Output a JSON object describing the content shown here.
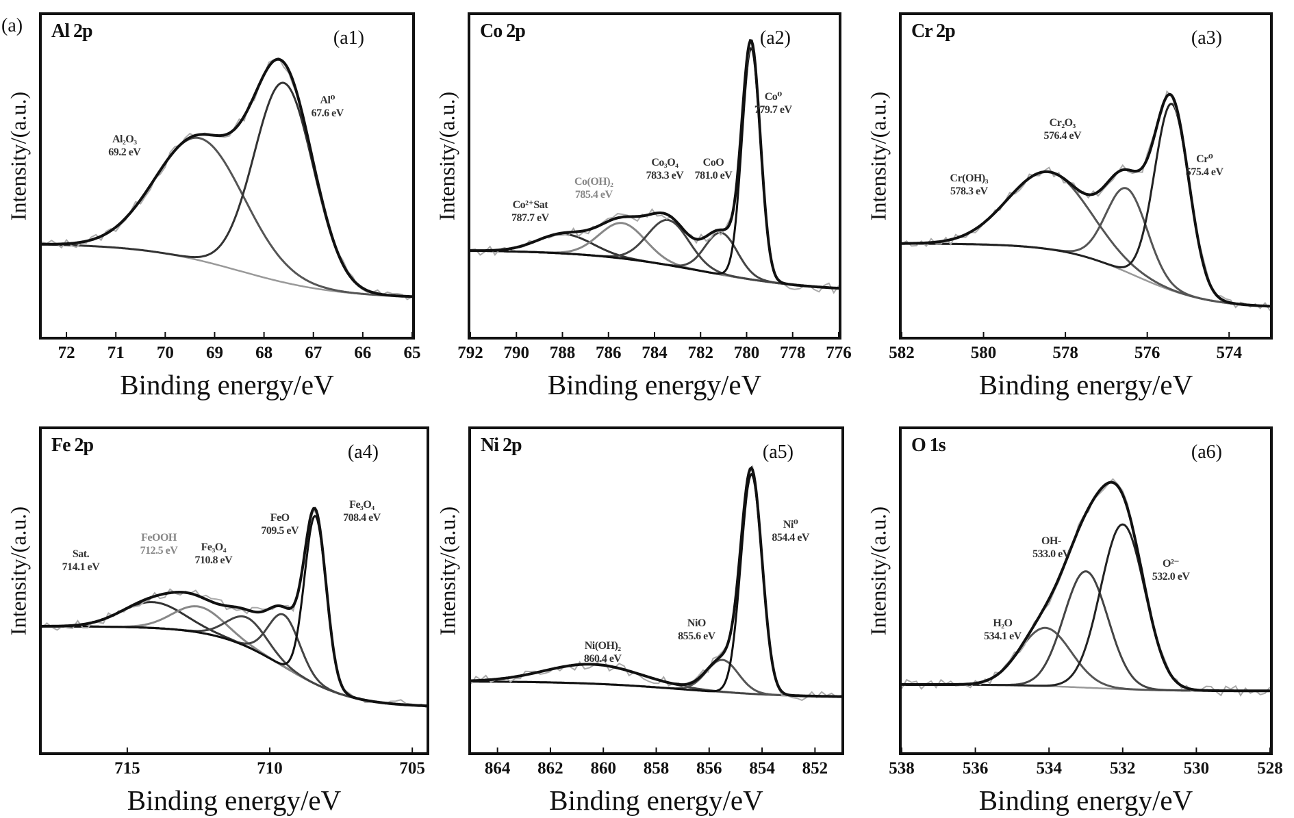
{
  "figure_tag": "(a)",
  "chart_data": [
    {
      "type": "line",
      "title": "Al 2p",
      "tag": "(a1)",
      "xlabel": "Binding energy/eV",
      "ylabel": "Intensity/(a.u.)",
      "xlim": [
        72.5,
        65
      ],
      "x_reversed": true,
      "xticks": [
        72,
        71,
        70,
        69,
        68,
        67,
        66,
        65
      ],
      "ylim": [
        0,
        1
      ],
      "grid": false,
      "background": {
        "high_be": 0.29,
        "low_be": 0.12,
        "center": 68.5,
        "width": 1.0
      },
      "peaks": [
        {
          "label": "Al₂O₃",
          "energy_label": "69.2 eV",
          "center": 69.3,
          "amplitude": 0.38,
          "sigma": 0.9,
          "color": "#555555"
        },
        {
          "label": "Al⁰",
          "energy_label": "67.6 eV",
          "center": 67.6,
          "amplitude": 0.62,
          "sigma": 0.6,
          "color": "#333333"
        }
      ]
    },
    {
      "type": "line",
      "title": "Co 2p",
      "tag": "(a2)",
      "xlabel": "Binding energy/eV",
      "ylabel": "Intensity/(a.u.)",
      "xlim": [
        792,
        776
      ],
      "x_reversed": true,
      "xticks": [
        792,
        790,
        788,
        786,
        784,
        782,
        780,
        778,
        776
      ],
      "ylim": [
        0,
        1
      ],
      "grid": false,
      "background": {
        "high_be": 0.27,
        "low_be": 0.14,
        "center": 782,
        "width": 2.5
      },
      "peaks": [
        {
          "label": "Co²⁺Sat",
          "energy_label": "787.7 eV",
          "center": 787.9,
          "amplitude": 0.06,
          "sigma": 1.2,
          "color": "#333333"
        },
        {
          "label": "Co(OH)₂",
          "energy_label": "785.4 eV",
          "center": 785.4,
          "amplitude": 0.11,
          "sigma": 1.0,
          "color": "#888888"
        },
        {
          "label": "Co₃O₄",
          "energy_label": "783.3 eV",
          "center": 783.4,
          "amplitude": 0.14,
          "sigma": 0.9,
          "color": "#444444"
        },
        {
          "label": "CoO",
          "energy_label": "781.0 eV",
          "center": 781.1,
          "amplitude": 0.13,
          "sigma": 0.7,
          "color": "#444444"
        },
        {
          "label": "Co⁰",
          "energy_label": "779.7 eV",
          "center": 779.8,
          "amplitude": 0.72,
          "sigma": 0.4,
          "color": "#111111"
        }
      ]
    },
    {
      "type": "line",
      "title": "Cr 2p",
      "tag": "(a3)",
      "xlabel": "Binding energy/eV",
      "ylabel": "Intensity/(a.u.)",
      "xlim": [
        582,
        573
      ],
      "x_reversed": true,
      "xticks": [
        582,
        580,
        578,
        576,
        574
      ],
      "ylim": [
        0,
        1
      ],
      "grid": false,
      "background": {
        "high_be": 0.29,
        "low_be": 0.09,
        "center": 576.3,
        "width": 0.9
      },
      "peaks": [
        {
          "label": "Cr(OH)₃",
          "energy_label": "578.3 eV",
          "center": 578.4,
          "amplitude": 0.24,
          "sigma": 1.0,
          "color": "#555555"
        },
        {
          "label": "Cr₂O₃",
          "energy_label": "576.4 eV",
          "center": 576.5,
          "amplitude": 0.26,
          "sigma": 0.5,
          "color": "#555555"
        },
        {
          "label": "Cr⁰",
          "energy_label": "575.4 eV",
          "center": 575.4,
          "amplitude": 0.58,
          "sigma": 0.42,
          "color": "#222222"
        }
      ]
    },
    {
      "type": "line",
      "title": "Fe 2p",
      "tag": "(a4)",
      "xlabel": "Binding energy/eV",
      "ylabel": "Intensity/(a.u.)",
      "xlim": [
        718,
        704.5
      ],
      "x_reversed": true,
      "xticks": [
        715,
        710,
        705
      ],
      "ylim": [
        0,
        1
      ],
      "grid": false,
      "background": {
        "high_be": 0.39,
        "low_be": 0.14,
        "center": 709.5,
        "width": 1.2
      },
      "peaks": [
        {
          "label": "Sat.",
          "energy_label": "714.1 eV",
          "center": 714.1,
          "amplitude": 0.08,
          "sigma": 1.1,
          "color": "#333333"
        },
        {
          "label": "FeOOH",
          "energy_label": "712.5 eV",
          "center": 712.5,
          "amplitude": 0.08,
          "sigma": 0.9,
          "color": "#888888"
        },
        {
          "label": "Fe₃O₄",
          "energy_label": "710.8 eV",
          "center": 710.8,
          "amplitude": 0.09,
          "sigma": 0.7,
          "color": "#444444"
        },
        {
          "label": "FeO",
          "energy_label": "709.5 eV",
          "center": 709.5,
          "amplitude": 0.16,
          "sigma": 0.55,
          "color": "#444444"
        },
        {
          "label": "Fe₃O₄",
          "energy_label": "708.4 eV",
          "center": 708.4,
          "amplitude": 0.52,
          "sigma": 0.38,
          "color": "#111111"
        }
      ]
    },
    {
      "type": "line",
      "title": "Ni 2p",
      "tag": "(a5)",
      "xlabel": "Binding energy/eV",
      "ylabel": "Intensity/(a.u.)",
      "xlim": [
        865,
        851
      ],
      "x_reversed": true,
      "xticks": [
        864,
        862,
        860,
        858,
        856,
        854,
        852
      ],
      "ylim": [
        0,
        1
      ],
      "grid": false,
      "background": {
        "high_be": 0.22,
        "low_be": 0.17,
        "center": 857,
        "width": 2.0
      },
      "peaks": [
        {
          "label": "Ni(OH)₂",
          "energy_label": "860.4 eV",
          "center": 860.4,
          "amplitude": 0.06,
          "sigma": 1.8,
          "color": "#444444"
        },
        {
          "label": "NiO",
          "energy_label": "855.6 eV",
          "center": 855.5,
          "amplitude": 0.1,
          "sigma": 0.6,
          "color": "#555555"
        },
        {
          "label": "Ni⁰",
          "energy_label": "854.4 eV",
          "center": 854.4,
          "amplitude": 0.68,
          "sigma": 0.4,
          "color": "#111111"
        }
      ]
    },
    {
      "type": "line",
      "title": "O 1s",
      "tag": "(a6)",
      "xlabel": "Binding energy/eV",
      "ylabel": "Intensity/(a.u.)",
      "xlim": [
        538,
        528
      ],
      "x_reversed": true,
      "xticks": [
        538,
        536,
        534,
        532,
        530,
        528
      ],
      "ylim": [
        0,
        1
      ],
      "grid": false,
      "background": {
        "high_be": 0.21,
        "low_be": 0.19,
        "center": 533,
        "width": 1.0
      },
      "peaks": [
        {
          "label": "H₂O",
          "energy_label": "534.1 eV",
          "center": 534.1,
          "amplitude": 0.18,
          "sigma": 0.7,
          "color": "#555555"
        },
        {
          "label": "OH-",
          "energy_label": "533.0 eV",
          "center": 533.0,
          "amplitude": 0.36,
          "sigma": 0.6,
          "color": "#444444"
        },
        {
          "label": "O²⁻",
          "energy_label": "532.0 eV",
          "center": 532.0,
          "amplitude": 0.51,
          "sigma": 0.6,
          "color": "#222222"
        }
      ]
    }
  ]
}
